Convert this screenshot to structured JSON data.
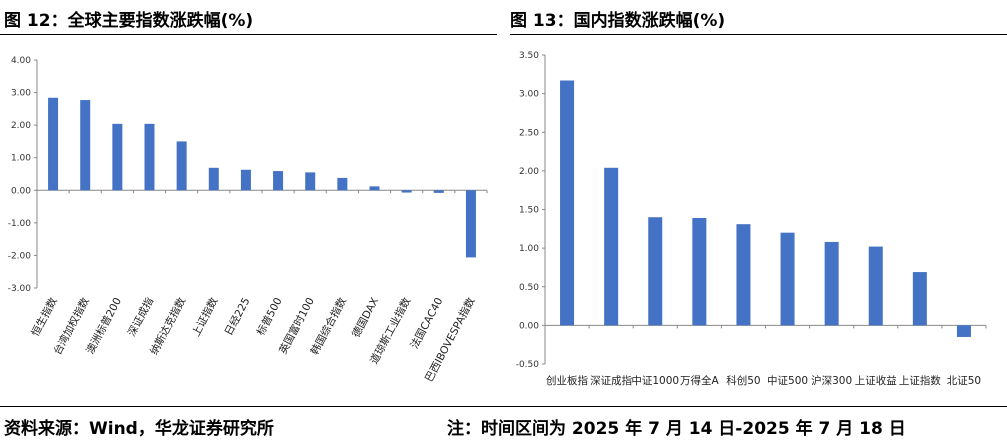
{
  "figures": {
    "left_title": "图 12：全球主要指数涨跌幅(%)",
    "right_title": "图 13：国内指数涨跌幅(%)"
  },
  "footer": {
    "source": "资料来源：Wind，华龙证券研究所",
    "note": "注：时间区间为 2025 年 7 月 14 日-2025 年 7 月 18 日"
  },
  "colors": {
    "bar": "#4472C4",
    "axis": "#888888"
  },
  "chart_data": [
    {
      "type": "bar",
      "title": "图 12：全球主要指数涨跌幅(%)",
      "categories": [
        "恒生指数",
        "台湾加权指数",
        "澳洲标普200",
        "深证成指",
        "纳斯达克指数",
        "上证指数",
        "日经225",
        "标普500",
        "英国富时100",
        "韩国综合指数",
        "德国DAX",
        "道琼斯工业指数",
        "法国CAC40",
        "巴西IBOVESPA指数"
      ],
      "values": [
        2.84,
        2.77,
        2.04,
        2.04,
        1.5,
        0.69,
        0.63,
        0.59,
        0.55,
        0.38,
        0.12,
        -0.07,
        -0.08,
        -2.06
      ],
      "yticks": [
        "4.00",
        "3.00",
        "2.00",
        "1.00",
        "0.00",
        "-1.00",
        "-2.00",
        "-3.00"
      ],
      "ylim": [
        -3,
        4
      ],
      "grid": false,
      "legend": "none"
    },
    {
      "type": "bar",
      "title": "图 13：国内指数涨跌幅(%)",
      "categories": [
        "创业板指",
        "深证成指",
        "中证1000",
        "万得全A",
        "科创50",
        "中证500",
        "沪深300",
        "上证收益",
        "上证指数",
        "北证50"
      ],
      "values": [
        3.17,
        2.04,
        1.4,
        1.39,
        1.31,
        1.2,
        1.08,
        1.02,
        0.69,
        -0.15
      ],
      "yticks": [
        "3.50",
        "3.00",
        "2.50",
        "2.00",
        "1.50",
        "1.00",
        "0.50",
        "0.00",
        "-0.50"
      ],
      "ylim": [
        -0.5,
        3.5
      ],
      "grid": false,
      "legend": "none"
    }
  ]
}
